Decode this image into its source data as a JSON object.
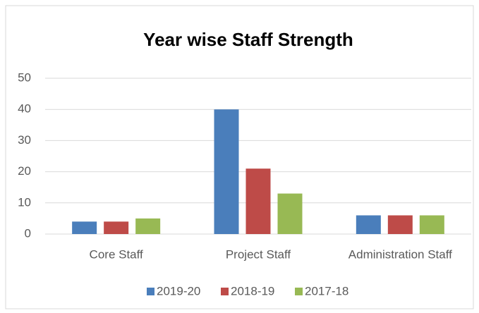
{
  "chart_data": {
    "type": "bar",
    "title": "Year wise Staff Strength",
    "categories": [
      "Core Staff",
      "Project Staff",
      "Administration Staff"
    ],
    "series": [
      {
        "name": "2019-20",
        "color": "#4a7ebb",
        "values": [
          4,
          40,
          6
        ]
      },
      {
        "name": "2018-19",
        "color": "#be4b48",
        "values": [
          4,
          21,
          6
        ]
      },
      {
        "name": "2017-18",
        "color": "#98b954",
        "values": [
          5,
          13,
          6
        ]
      }
    ],
    "ylim": [
      0,
      50
    ],
    "yticks": [
      0,
      10,
      20,
      30,
      40,
      50
    ],
    "grid": true,
    "legend": "bottom"
  }
}
